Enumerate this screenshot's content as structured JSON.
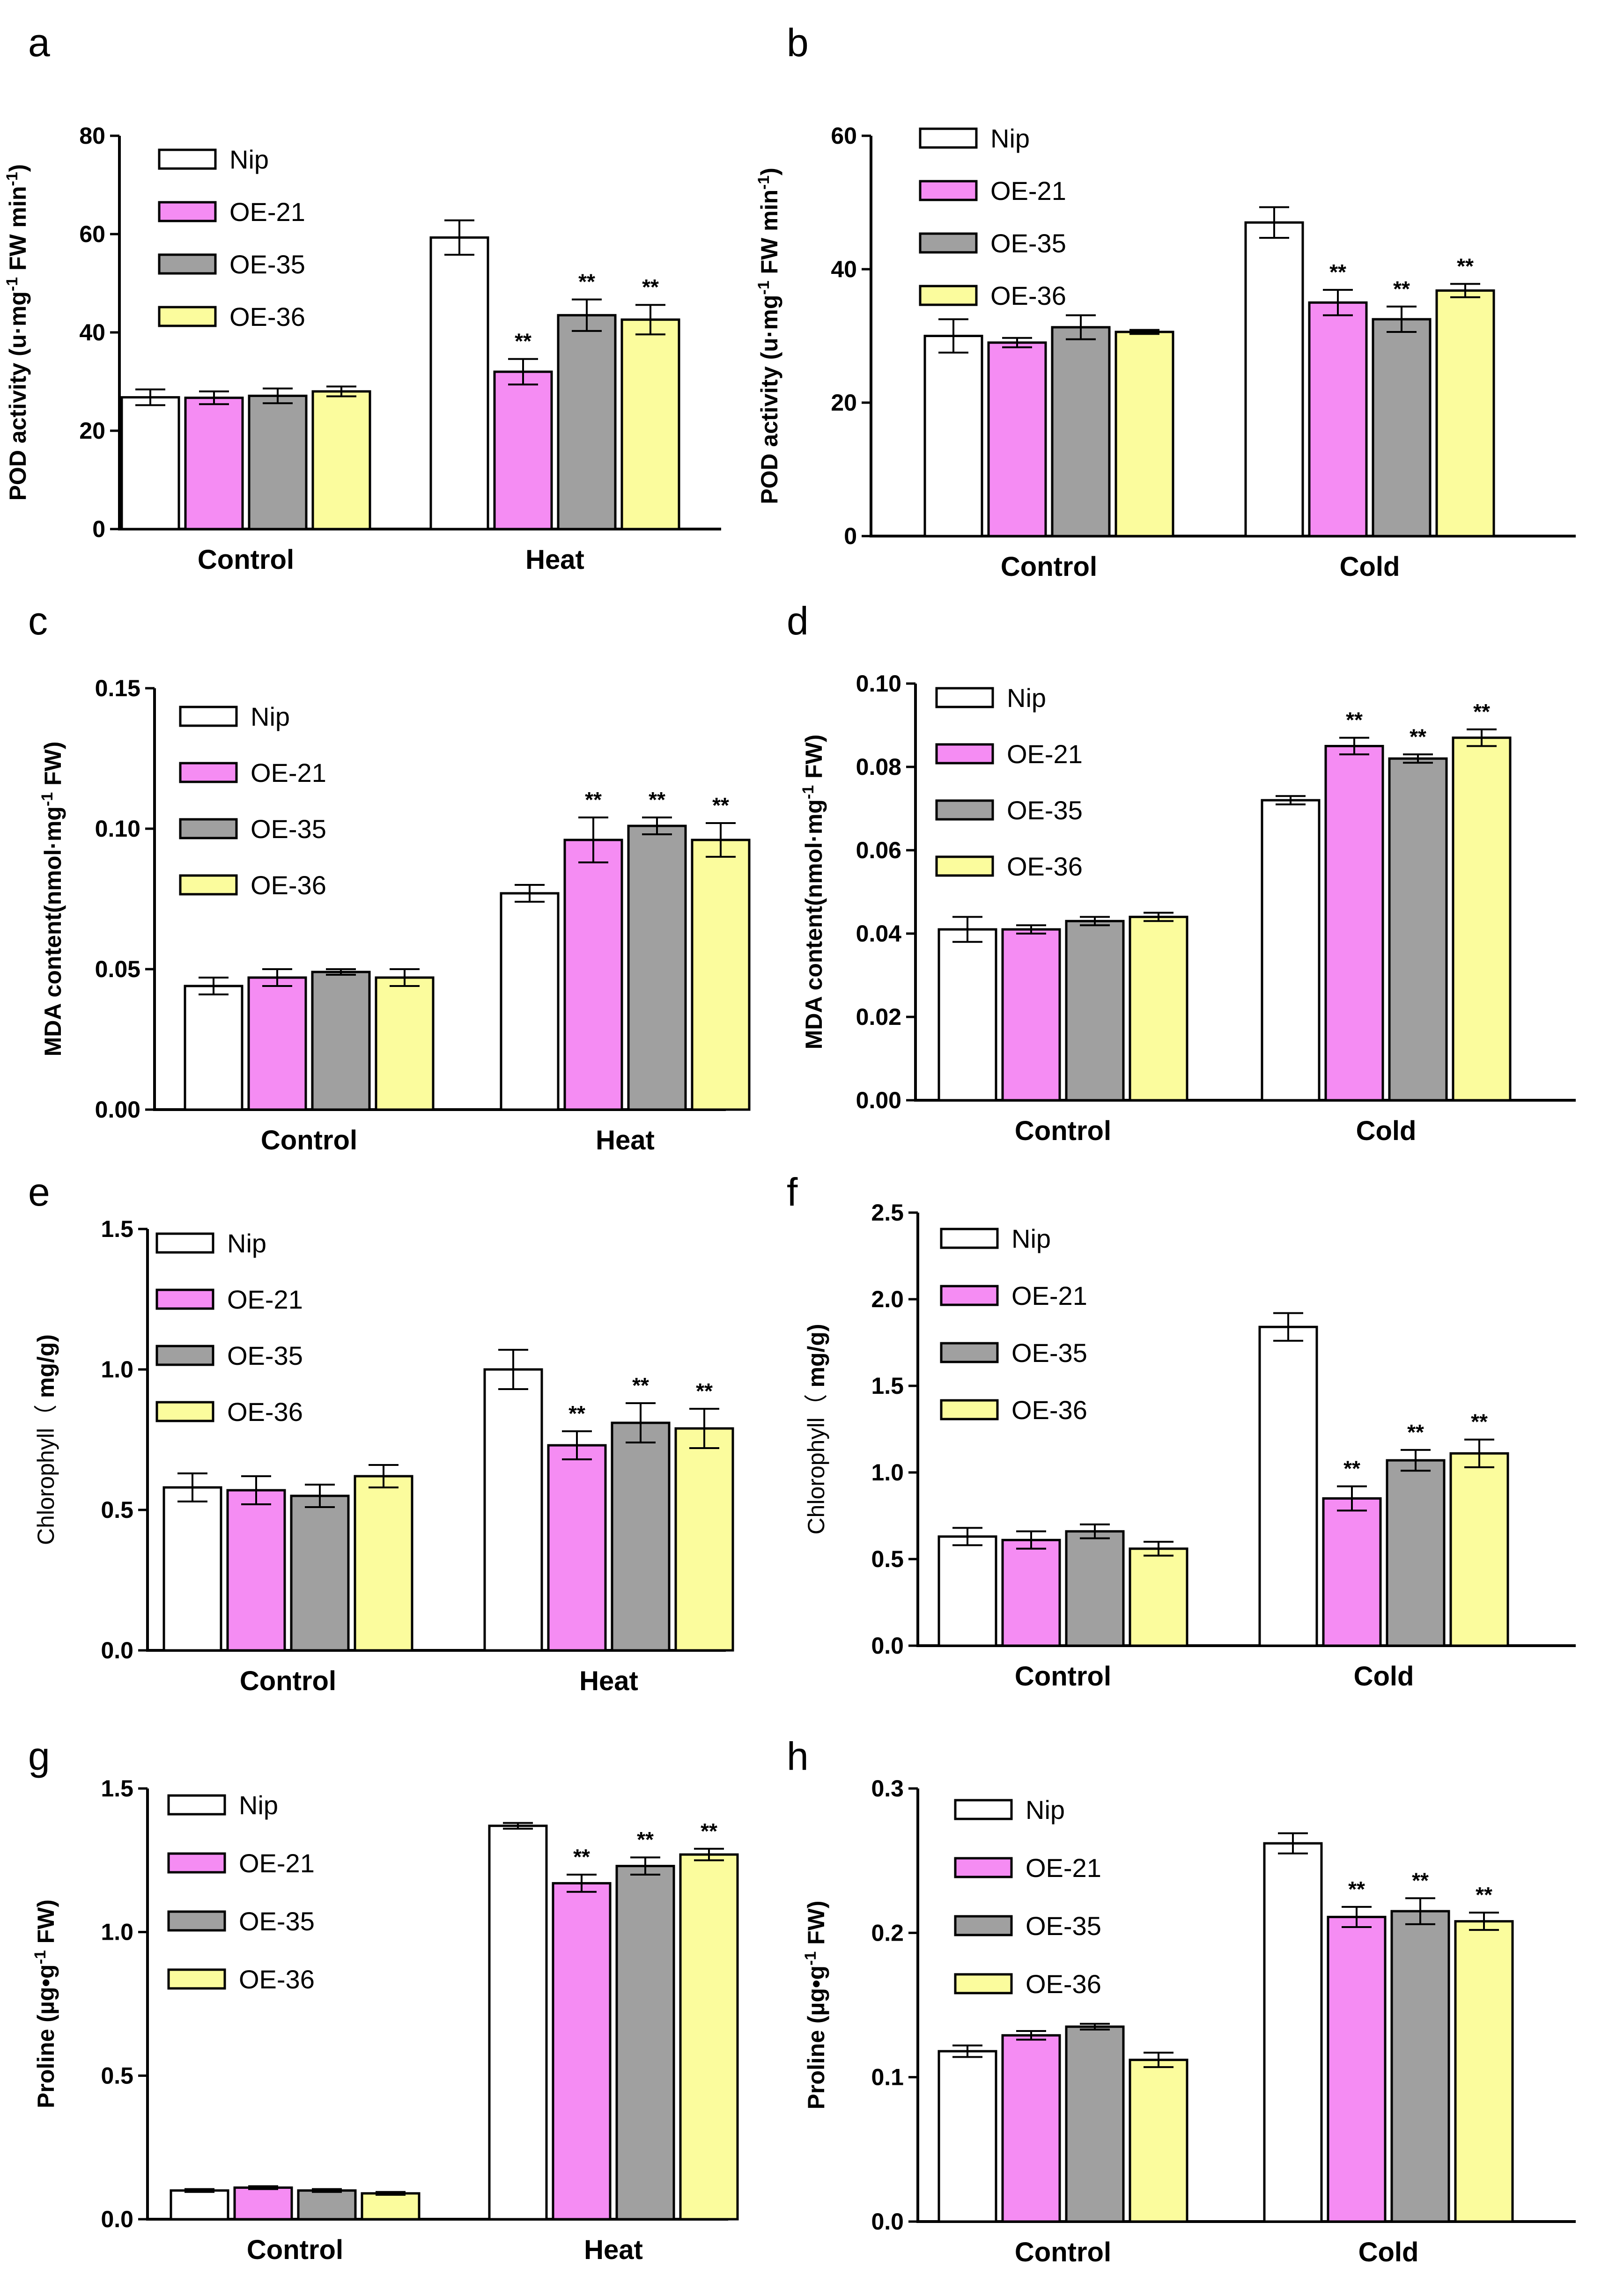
{
  "colors": {
    "Nip": "#ffffff",
    "OE-21": "#f58cf3",
    "OE-35": "#a0a0a0",
    "OE-36": "#fbfc9d",
    "axis": "#000000"
  },
  "chart_data": [
    {
      "panel": "a",
      "type": "bar",
      "ylabel": "POD activity (u·mg-1 FW min-1)",
      "ylabel_parts": [
        "POD activity (u·mg",
        "-1",
        " FW min",
        "-1",
        ")"
      ],
      "ylim": [
        0,
        80
      ],
      "yticks": [
        "0",
        "20",
        "40",
        "60",
        "80"
      ],
      "categories": [
        "Control",
        "Heat"
      ],
      "series": [
        {
          "name": "Nip",
          "values": [
            26.8,
            59.3
          ],
          "errors": [
            1.6,
            3.5
          ],
          "sig": [
            "",
            ""
          ]
        },
        {
          "name": "OE-21",
          "values": [
            26.7,
            32.0
          ],
          "errors": [
            1.3,
            2.6
          ],
          "sig": [
            "",
            "**"
          ]
        },
        {
          "name": "OE-35",
          "values": [
            27.1,
            43.5
          ],
          "errors": [
            1.5,
            3.2
          ],
          "sig": [
            "",
            "**"
          ]
        },
        {
          "name": "OE-36",
          "values": [
            28.0,
            42.6
          ],
          "errors": [
            1.0,
            3.0
          ],
          "sig": [
            "",
            "**"
          ]
        }
      ]
    },
    {
      "panel": "b",
      "type": "bar",
      "ylabel": "POD activity (u·mg-1 FW min-1)",
      "ylabel_parts": [
        "POD activity (u·mg",
        "-1",
        " FW min",
        "-1",
        ")"
      ],
      "ylim": [
        0,
        60
      ],
      "yticks": [
        "0",
        "20",
        "40",
        "60"
      ],
      "categories": [
        "Control",
        "Cold"
      ],
      "series": [
        {
          "name": "Nip",
          "values": [
            30.0,
            47.0
          ],
          "errors": [
            2.5,
            2.3
          ],
          "sig": [
            "",
            ""
          ]
        },
        {
          "name": "OE-21",
          "values": [
            29.0,
            35.0
          ],
          "errors": [
            0.7,
            1.9
          ],
          "sig": [
            "",
            "**"
          ]
        },
        {
          "name": "OE-35",
          "values": [
            31.3,
            32.5
          ],
          "errors": [
            1.8,
            1.9
          ],
          "sig": [
            "",
            "**"
          ]
        },
        {
          "name": "OE-36",
          "values": [
            30.6,
            36.8
          ],
          "errors": [
            0.3,
            1.0
          ],
          "sig": [
            "",
            "**"
          ]
        }
      ]
    },
    {
      "panel": "c",
      "type": "bar",
      "ylabel": "MDA content(nmol·mg-1 FW)",
      "ylabel_parts": [
        "MDA content(nmol·mg",
        "-1",
        " FW)"
      ],
      "ylim": [
        0,
        0.15
      ],
      "yticks": [
        "0.00",
        "0.05",
        "0.10",
        "0.15"
      ],
      "categories": [
        "Control",
        "Heat"
      ],
      "series": [
        {
          "name": "Nip",
          "values": [
            0.044,
            0.077
          ],
          "errors": [
            0.003,
            0.003
          ],
          "sig": [
            "",
            ""
          ]
        },
        {
          "name": "OE-21",
          "values": [
            0.047,
            0.096
          ],
          "errors": [
            0.003,
            0.008
          ],
          "sig": [
            "",
            "**"
          ]
        },
        {
          "name": "OE-35",
          "values": [
            0.049,
            0.101
          ],
          "errors": [
            0.001,
            0.003
          ],
          "sig": [
            "",
            "**"
          ]
        },
        {
          "name": "OE-36",
          "values": [
            0.047,
            0.096
          ],
          "errors": [
            0.003,
            0.006
          ],
          "sig": [
            "",
            "**"
          ]
        }
      ]
    },
    {
      "panel": "d",
      "type": "bar",
      "ylabel": "MDA content(nmol·mg-1 FW)",
      "ylabel_parts": [
        "MDA content(nmol·mg",
        "-1",
        " FW)"
      ],
      "ylim": [
        0,
        0.1
      ],
      "yticks": [
        "0.00",
        "0.02",
        "0.04",
        "0.06",
        "0.08",
        "0.10"
      ],
      "categories": [
        "Control",
        "Cold"
      ],
      "series": [
        {
          "name": "Nip",
          "values": [
            0.041,
            0.072
          ],
          "errors": [
            0.003,
            0.001
          ],
          "sig": [
            "",
            ""
          ]
        },
        {
          "name": "OE-21",
          "values": [
            0.041,
            0.085
          ],
          "errors": [
            0.001,
            0.002
          ],
          "sig": [
            "",
            "**"
          ]
        },
        {
          "name": "OE-35",
          "values": [
            0.043,
            0.082
          ],
          "errors": [
            0.001,
            0.001
          ],
          "sig": [
            "",
            "**"
          ]
        },
        {
          "name": "OE-36",
          "values": [
            0.044,
            0.087
          ],
          "errors": [
            0.001,
            0.002
          ],
          "sig": [
            "",
            "**"
          ]
        }
      ]
    },
    {
      "panel": "e",
      "type": "bar",
      "ylabel": "Chlorophyll（ mg/g)",
      "ylabel_parts": [
        "Chlorophyll（ ",
        "mg/g)"
      ],
      "ylim": [
        0,
        1.5
      ],
      "yticks": [
        "0.0",
        "0.5",
        "1.0",
        "1.5"
      ],
      "categories": [
        "Control",
        "Heat"
      ],
      "series": [
        {
          "name": "Nip",
          "values": [
            0.58,
            1.0
          ],
          "errors": [
            0.05,
            0.07
          ],
          "sig": [
            "",
            ""
          ]
        },
        {
          "name": "OE-21",
          "values": [
            0.57,
            0.73
          ],
          "errors": [
            0.05,
            0.05
          ],
          "sig": [
            "",
            "**"
          ]
        },
        {
          "name": "OE-35",
          "values": [
            0.55,
            0.81
          ],
          "errors": [
            0.04,
            0.07
          ],
          "sig": [
            "",
            "**"
          ]
        },
        {
          "name": "OE-36",
          "values": [
            0.62,
            0.79
          ],
          "errors": [
            0.04,
            0.07
          ],
          "sig": [
            "",
            "**"
          ]
        }
      ]
    },
    {
      "panel": "f",
      "type": "bar",
      "ylabel": "Chlorophyll（ mg/g)",
      "ylabel_parts": [
        "Chlorophyll（ ",
        "mg/g)"
      ],
      "ylim": [
        0,
        2.5
      ],
      "yticks": [
        "0.0",
        "0.5",
        "1.0",
        "1.5",
        "2.0",
        "2.5"
      ],
      "categories": [
        "Control",
        "Cold"
      ],
      "series": [
        {
          "name": "Nip",
          "values": [
            0.63,
            1.84
          ],
          "errors": [
            0.05,
            0.08
          ],
          "sig": [
            "",
            ""
          ]
        },
        {
          "name": "OE-21",
          "values": [
            0.61,
            0.85
          ],
          "errors": [
            0.05,
            0.07
          ],
          "sig": [
            "",
            "**"
          ]
        },
        {
          "name": "OE-35",
          "values": [
            0.66,
            1.07
          ],
          "errors": [
            0.04,
            0.06
          ],
          "sig": [
            "",
            "**"
          ]
        },
        {
          "name": "OE-36",
          "values": [
            0.56,
            1.11
          ],
          "errors": [
            0.04,
            0.08
          ],
          "sig": [
            "",
            "**"
          ]
        }
      ]
    },
    {
      "panel": "g",
      "type": "bar",
      "ylabel": "Proline (µg•g-1 FW)",
      "ylabel_parts": [
        "Proline (µg•g",
        "-1",
        " FW)"
      ],
      "ylim": [
        0,
        1.5
      ],
      "yticks": [
        "0.0",
        "0.5",
        "1.0",
        "1.5"
      ],
      "categories": [
        "Control",
        "Heat"
      ],
      "series": [
        {
          "name": "Nip",
          "values": [
            0.1,
            1.37
          ],
          "errors": [
            0.005,
            0.01
          ],
          "sig": [
            "",
            ""
          ]
        },
        {
          "name": "OE-21",
          "values": [
            0.11,
            1.17
          ],
          "errors": [
            0.005,
            0.03
          ],
          "sig": [
            "",
            "**"
          ]
        },
        {
          "name": "OE-35",
          "values": [
            0.1,
            1.23
          ],
          "errors": [
            0.005,
            0.03
          ],
          "sig": [
            "",
            "**"
          ]
        },
        {
          "name": "OE-36",
          "values": [
            0.09,
            1.27
          ],
          "errors": [
            0.005,
            0.02
          ],
          "sig": [
            "",
            "**"
          ]
        }
      ]
    },
    {
      "panel": "h",
      "type": "bar",
      "ylabel": "Proline (µg•g-1 FW)",
      "ylabel_parts": [
        "Proline (µg•g",
        "-1",
        " FW)"
      ],
      "ylim": [
        0,
        0.3
      ],
      "yticks": [
        "0.0",
        "0.1",
        "0.2",
        "0.3"
      ],
      "categories": [
        "Control",
        "Cold"
      ],
      "series": [
        {
          "name": "Nip",
          "values": [
            0.118,
            0.262
          ],
          "errors": [
            0.004,
            0.007
          ],
          "sig": [
            "",
            ""
          ]
        },
        {
          "name": "OE-21",
          "values": [
            0.129,
            0.211
          ],
          "errors": [
            0.003,
            0.007
          ],
          "sig": [
            "",
            "**"
          ]
        },
        {
          "name": "OE-35",
          "values": [
            0.135,
            0.215
          ],
          "errors": [
            0.002,
            0.009
          ],
          "sig": [
            "",
            "**"
          ]
        },
        {
          "name": "OE-36",
          "values": [
            0.112,
            0.208
          ],
          "errors": [
            0.005,
            0.006
          ],
          "sig": [
            "",
            "**"
          ]
        }
      ]
    }
  ]
}
